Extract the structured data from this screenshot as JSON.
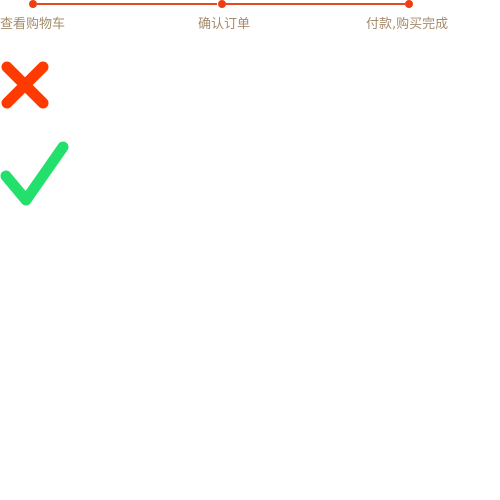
{
  "checkout_steps": {
    "items": [
      {
        "label": "查看购物车"
      },
      {
        "label": "确认订单"
      },
      {
        "label": "付款,购买完成"
      }
    ],
    "line_color": "#e34a1f",
    "dot_color": "#f23d12",
    "label_color": "#a58b6c"
  },
  "icons": {
    "error": {
      "name": "close-x-icon",
      "color": "#ff3a00"
    },
    "success": {
      "name": "checkmark-icon",
      "color": "#22e06b"
    }
  }
}
